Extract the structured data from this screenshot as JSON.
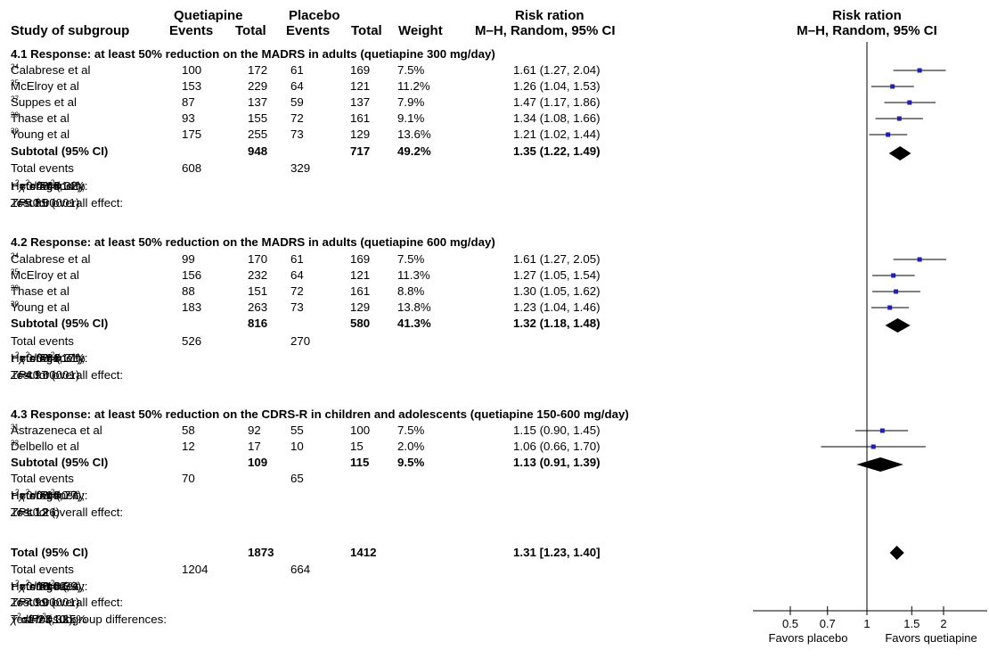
{
  "header": {
    "quetiapine": "Quetiapine",
    "placebo": "Placebo",
    "risk_ration": "Risk ration",
    "study": "Study of subgroup",
    "events": "Events",
    "total": "Total",
    "weight": "Weight",
    "method": "M–H, Random, 95% CI",
    "plot_title": "Risk ration",
    "plot_method": "M–H, Random, 95% CI"
  },
  "colors": {
    "marker": "#1f1fb4",
    "line": "#000000"
  },
  "chart_data": {
    "type": "forest",
    "x_scale": "log",
    "reference_line": 1,
    "x_ticks": [
      0.5,
      0.7,
      1,
      1.5,
      2
    ],
    "x_tick_labels": [
      "0.5",
      "0.7",
      "1",
      "1.5",
      "2"
    ],
    "x_labels_left": "Favors placebo",
    "x_labels_right": "Favors quetiapine",
    "subgroups": [
      {
        "title": "4.1 Response: at least 50% reduction on the MADRS in adults (quetiapine 300 mg/day)",
        "studies": [
          {
            "name": "Calabrese et al",
            "ref": "24",
            "q_events": "100",
            "q_total": "172",
            "p_events": "61",
            "p_total": "169",
            "weight": "7.5%",
            "ci_text": "1.61 (1.27, 2.04)",
            "rr": 1.61,
            "lo": 1.27,
            "hi": 2.04
          },
          {
            "name": "McElroy et al",
            "ref": "25",
            "q_events": "153",
            "q_total": "229",
            "p_events": "64",
            "p_total": "121",
            "weight": "11.2%",
            "ci_text": "1.26 (1.04, 1.53)",
            "rr": 1.26,
            "lo": 1.04,
            "hi": 1.53
          },
          {
            "name": "Suppes et al",
            "ref": "27",
            "q_events": "87",
            "q_total": "137",
            "p_events": "59",
            "p_total": "137",
            "weight": "7.9%",
            "ci_text": "1.47 (1.17, 1.86)",
            "rr": 1.47,
            "lo": 1.17,
            "hi": 1.86
          },
          {
            "name": "Thase et al",
            "ref": "29",
            "q_events": "93",
            "q_total": "155",
            "p_events": "72",
            "p_total": "161",
            "weight": "9.1%",
            "ci_text": "1.34 (1.08, 1.66)",
            "rr": 1.34,
            "lo": 1.08,
            "hi": 1.66
          },
          {
            "name": "Young et al",
            "ref": "30",
            "q_events": "175",
            "q_total": "255",
            "p_events": "73",
            "p_total": "129",
            "weight": "13.6%",
            "ci_text": "1.21 (1.02, 1.44)",
            "rr": 1.21,
            "lo": 1.02,
            "hi": 1.44
          }
        ],
        "subtotal": {
          "label": "Subtotal (95% CI)",
          "q_total": "948",
          "p_total": "717",
          "weight": "49.2%",
          "ci_text": "1.35 (1.22, 1.49)",
          "rr": 1.35,
          "lo": 1.22,
          "hi": 1.49
        },
        "total_events": {
          "label": "Total events",
          "q": "608",
          "p": "329"
        },
        "heterogeneity": {
          "prefix": "Heterogeneity: ",
          "tau_label": "τ",
          "tau_value": "=0.00; ",
          "chi_label": "χ",
          "chi_value": "=4.68, ",
          "df_label": "df",
          "df_value": "=4 (",
          "p_label": "P",
          "p_value": "=0.32); ",
          "i_label": "I",
          "i_value": "=14%"
        },
        "overall": {
          "prefix": "Test for overall effect: ",
          "z_label": "Z",
          "z_value": "=5.85 (",
          "p_label": "P",
          "p_value": "<0.00001)"
        }
      },
      {
        "title": "4.2 Response: at least 50% reduction on the MADRS in adults (quetiapine 600 mg/day)",
        "studies": [
          {
            "name": "Calabrese et al",
            "ref": "24",
            "q_events": "99",
            "q_total": "170",
            "p_events": "61",
            "p_total": "169",
            "weight": "7.5%",
            "ci_text": "1.61 (1.27, 2.05)",
            "rr": 1.61,
            "lo": 1.27,
            "hi": 2.05
          },
          {
            "name": "McElroy et al",
            "ref": "25",
            "q_events": "156",
            "q_total": "232",
            "p_events": "64",
            "p_total": "121",
            "weight": "11.3%",
            "ci_text": "1.27 (1.05, 1.54)",
            "rr": 1.27,
            "lo": 1.05,
            "hi": 1.54
          },
          {
            "name": "Thase et al",
            "ref": "29",
            "q_events": "88",
            "q_total": "151",
            "p_events": "72",
            "p_total": "161",
            "weight": "8.8%",
            "ci_text": "1.30 (1.05, 1.62)",
            "rr": 1.3,
            "lo": 1.05,
            "hi": 1.62
          },
          {
            "name": "Young et al",
            "ref": "30",
            "q_events": "183",
            "q_total": "263",
            "p_events": "73",
            "p_total": "129",
            "weight": "13.8%",
            "ci_text": "1.23 (1.04, 1.46)",
            "rr": 1.23,
            "lo": 1.04,
            "hi": 1.46
          }
        ],
        "subtotal": {
          "label": "Subtotal (95% CI)",
          "q_total": "816",
          "p_total": "580",
          "weight": "41.3%",
          "ci_text": "1.32 (1.18, 1.48)",
          "rr": 1.32,
          "lo": 1.18,
          "hi": 1.48
        },
        "total_events": {
          "label": "Total events",
          "q": "526",
          "p": "270"
        },
        "heterogeneity": {
          "prefix": "Heterogeneity: ",
          "tau_label": "τ",
          "tau_value": "=0.00; ",
          "chi_label": "χ",
          "chi_value": "=3.61, ",
          "df_label": "df",
          "df_value": "=3 (",
          "p_label": "P",
          "p_value": "=0.31); ",
          "i_label": "I",
          "i_value": "=17%"
        },
        "overall": {
          "prefix": "Test for overall effect: ",
          "z_label": "Z",
          "z_value": "=4.97 (",
          "p_label": "P",
          "p_value": "<0.00001)"
        }
      },
      {
        "title": "4.3 Response: at least 50% reduction on the CDRS-R in children and adolescents (quetiapine 150-600 mg/day)",
        "studies": [
          {
            "name": "Astrazeneca  et al",
            "ref": "31",
            "q_events": "58",
            "q_total": "92",
            "p_events": "55",
            "p_total": "100",
            "weight": "7.5%",
            "ci_text": "1.15 (0.90, 1.45)",
            "rr": 1.15,
            "lo": 0.9,
            "hi": 1.45
          },
          {
            "name": "Delbello et al",
            "ref": "32",
            "q_events": "12",
            "q_total": "17",
            "p_events": "10",
            "p_total": "15",
            "weight": "2.0%",
            "ci_text": "1.06 (0.66, 1.70)",
            "rr": 1.06,
            "lo": 0.66,
            "hi": 1.7
          }
        ],
        "subtotal": {
          "label": "Subtotal (95% CI)",
          "q_total": "109",
          "p_total": "115",
          "weight": "9.5%",
          "ci_text": "1.13 (0.91, 1.39)",
          "rr": 1.13,
          "lo": 0.91,
          "hi": 1.39
        },
        "total_events": {
          "label": "Total events",
          "q": "70",
          "p": "65"
        },
        "heterogeneity": {
          "prefix": "Heterogeneity: ",
          "tau_label": "τ",
          "tau_value": "=0.00; ",
          "chi_label": "χ",
          "chi_value": "=0.09, ",
          "df_label": "df",
          "df_value": "=1 (",
          "p_label": "P",
          "p_value": "=0.77); ",
          "i_label": "I",
          "i_value": "=0%"
        },
        "overall": {
          "prefix": "Test for overall effect: ",
          "z_label": "Z",
          "z_value": "=1.12 (",
          "p_label": "P",
          "p_value": "<0.26)"
        }
      }
    ],
    "total": {
      "label": "Total (95% CI)",
      "q_total": "1873",
      "p_total": "1412",
      "ci_text": "1.31 [1.23, 1.40]",
      "rr": 1.31,
      "lo": 1.23,
      "hi": 1.4,
      "total_events": {
        "label": "Total events",
        "q": "1204",
        "p": "664"
      },
      "heterogeneity": {
        "prefix": "Heterogeneity: ",
        "tau_label": "τ",
        "tau_value": "=0.00; ",
        "chi_label": "χ",
        "chi_value": "=10.62, ",
        "df_label": "df",
        "df_value": "=10 (",
        "p_label": "P",
        "p_value": "=0.39); ",
        "i_label": "I",
        "i_value": "=6%"
      },
      "overall": {
        "prefix": "Test for overall effect: ",
        "z_label": "Z",
        "z_value": "=7.99 (",
        "p_label": "P",
        "p_value": "<0.00001)"
      },
      "subgroup_diff": {
        "prefix": "Test for subgroup differences: ",
        "chi_label": "χ",
        "chi_value": "=2.23, ",
        "df_label": "df",
        "df_value": "=2 (",
        "p_label": "P",
        "p_value": "=0.33); ",
        "i_label": "I",
        "i_value": "=10.5%"
      }
    }
  }
}
